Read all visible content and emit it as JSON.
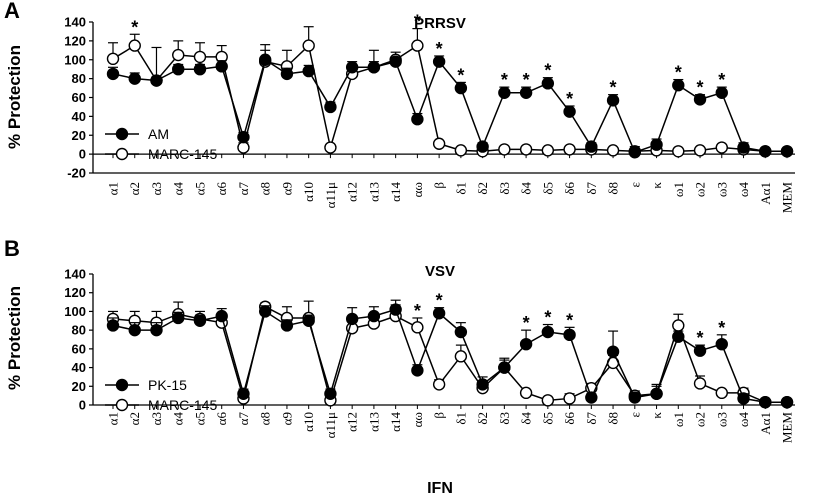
{
  "chart_data": [
    {
      "type": "line",
      "panel_label": "A",
      "title": "PRRSV",
      "ylabel": "% Protection",
      "xlabel": "",
      "ylim": [
        -20,
        140
      ],
      "yticks": [
        -20,
        0,
        20,
        40,
        60,
        80,
        100,
        120,
        140
      ],
      "categories": [
        "α1",
        "α2",
        "α3",
        "α4",
        "α5",
        "α6",
        "α7",
        "α8",
        "α9",
        "α10",
        "α11μ",
        "α12",
        "α13",
        "α14",
        "αω",
        "β",
        "δ1",
        "δ2",
        "δ3",
        "δ4",
        "δ5",
        "δ6",
        "δ7",
        "δ8",
        "ε",
        "κ",
        "ω1",
        "ω2",
        "ω3",
        "ω4",
        "Aα1",
        "MEM"
      ],
      "series": [
        {
          "name": "AM",
          "marker": "filled",
          "values": [
            85,
            80,
            78,
            90,
            90,
            93,
            18,
            100,
            85,
            88,
            50,
            92,
            92,
            98,
            37,
            98,
            70,
            8,
            65,
            65,
            75,
            45,
            8,
            57,
            2,
            10,
            73,
            58,
            65,
            7,
            3,
            3
          ],
          "errors": [
            7,
            6,
            4,
            5,
            5,
            6,
            5,
            10,
            6,
            6,
            5,
            6,
            6,
            5,
            6,
            6,
            6,
            4,
            6,
            6,
            6,
            6,
            4,
            6,
            6,
            6,
            6,
            5,
            6,
            5,
            3,
            3
          ]
        },
        {
          "name": "MARC-145",
          "marker": "open",
          "values": [
            101,
            115,
            78,
            105,
            103,
            103,
            7,
            98,
            93,
            115,
            7,
            85,
            92,
            100,
            115,
            11,
            4,
            3,
            5,
            5,
            4,
            5,
            5,
            4,
            3,
            4,
            3,
            4,
            7,
            5,
            3,
            3
          ],
          "errors": [
            17,
            12,
            35,
            15,
            15,
            12,
            5,
            18,
            17,
            20,
            3,
            8,
            18,
            8,
            18,
            3,
            3,
            3,
            3,
            3,
            3,
            3,
            3,
            3,
            3,
            3,
            3,
            3,
            3,
            3,
            3,
            3
          ]
        }
      ],
      "significance_markers": [
        {
          "category": "α2",
          "label": "*"
        },
        {
          "category": "αω",
          "label": "*"
        },
        {
          "category": "β",
          "label": "*"
        },
        {
          "category": "δ1",
          "label": "*"
        },
        {
          "category": "δ3",
          "label": "*"
        },
        {
          "category": "δ4",
          "label": "*"
        },
        {
          "category": "δ5",
          "label": "*"
        },
        {
          "category": "δ6",
          "label": "*"
        },
        {
          "category": "δ8",
          "label": "*"
        },
        {
          "category": "ω1",
          "label": "*"
        },
        {
          "category": "ω2",
          "label": "*"
        },
        {
          "category": "ω3",
          "label": "*"
        }
      ],
      "legend": "bottom-left"
    },
    {
      "type": "line",
      "panel_label": "B",
      "title": "VSV",
      "ylabel": "% Protection",
      "xlabel": "IFN",
      "ylim": [
        0,
        140
      ],
      "yticks": [
        0,
        20,
        40,
        60,
        80,
        100,
        120,
        140
      ],
      "categories": [
        "α1",
        "α2",
        "α3",
        "α4",
        "α5",
        "α6",
        "α7",
        "α8",
        "α9",
        "α10",
        "α11μ",
        "α12",
        "α13",
        "α14",
        "αω",
        "β",
        "δ1",
        "δ2",
        "δ3",
        "δ4",
        "δ5",
        "δ6",
        "δ7",
        "δ8",
        "ε",
        "κ",
        "ω1",
        "ω2",
        "ω3",
        "ω4",
        "Aα1",
        "MEM"
      ],
      "series": [
        {
          "name": "PK-15",
          "marker": "filled",
          "values": [
            85,
            80,
            80,
            93,
            90,
            95,
            12,
            100,
            85,
            90,
            12,
            92,
            95,
            102,
            37,
            98,
            78,
            22,
            40,
            65,
            78,
            75,
            8,
            57,
            8,
            12,
            73,
            58,
            65,
            7,
            3,
            3
          ],
          "errors": [
            8,
            8,
            8,
            6,
            6,
            8,
            5,
            6,
            6,
            6,
            5,
            12,
            10,
            10,
            6,
            6,
            10,
            8,
            10,
            15,
            8,
            8,
            4,
            22,
            5,
            8,
            6,
            6,
            10,
            5,
            3,
            3
          ]
        },
        {
          "name": "MARC-145",
          "marker": "open",
          "values": [
            92,
            90,
            88,
            97,
            92,
            88,
            7,
            105,
            93,
            93,
            5,
            82,
            87,
            95,
            83,
            22,
            52,
            18,
            40,
            13,
            5,
            7,
            18,
            45,
            10,
            12,
            85,
            23,
            13,
            13,
            3,
            3
          ],
          "errors": [
            8,
            10,
            12,
            13,
            8,
            10,
            3,
            4,
            12,
            18,
            3,
            8,
            6,
            12,
            10,
            5,
            12,
            5,
            8,
            3,
            3,
            5,
            5,
            8,
            5,
            10,
            12,
            8,
            3,
            5,
            3,
            3
          ]
        }
      ],
      "significance_markers": [
        {
          "category": "αω",
          "label": "*"
        },
        {
          "category": "β",
          "label": "*"
        },
        {
          "category": "δ4",
          "label": "*"
        },
        {
          "category": "δ5",
          "label": "*"
        },
        {
          "category": "δ6",
          "label": "*"
        },
        {
          "category": "ω2",
          "label": "*"
        },
        {
          "category": "ω3",
          "label": "*"
        }
      ],
      "legend": "bottom-left"
    }
  ]
}
